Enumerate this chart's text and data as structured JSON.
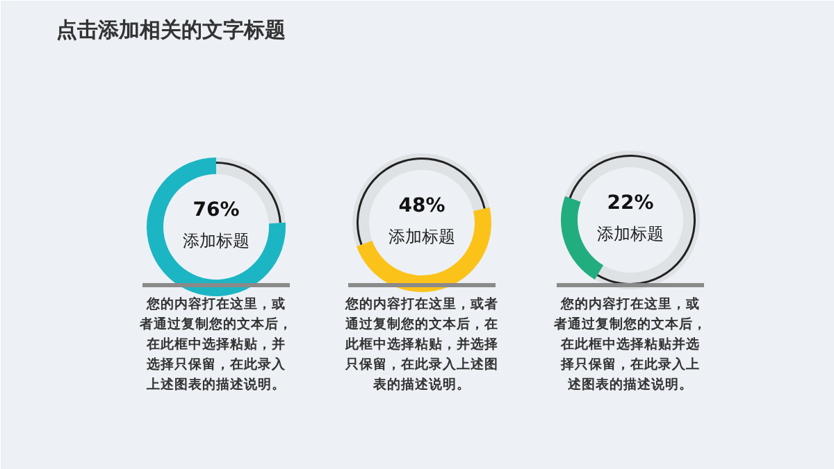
{
  "chart_data": [
    {
      "type": "other",
      "title": "点击添加相关的文字标题"
    },
    {
      "type": "donut",
      "categories": [
        null,
        null
      ],
      "values": [
        76,
        24
      ],
      "colors": [
        "#1cb5c4",
        "#222222"
      ],
      "annotations": [
        "76%",
        "添加标题",
        "您的内容打在这里，或者通过复制您的文本后，在此框中选择粘贴，并选择只保留，在此录入上述图表的描述说明。"
      ]
    },
    {
      "type": "donut",
      "categories": [
        null,
        null
      ],
      "values": [
        48,
        52
      ],
      "colors": [
        "#fbc21a",
        "#222222"
      ],
      "annotations": [
        "48%",
        "添加标题",
        "您的内容打在这里，或者通过复制您的文本后，在此框中选择粘贴，并选择只保留，在此录入上述图表的描述说明。"
      ]
    },
    {
      "type": "donut",
      "categories": [
        null,
        null
      ],
      "values": [
        22,
        78
      ],
      "colors": [
        "#22ad7f",
        "#222222"
      ],
      "annotations": [
        "22%",
        "添加标题",
        "您的内容打在这里，或者通过复制您的文本后，在此框中选择粘贴并选择只保留，在此录入上述图表的描述说明。"
      ]
    }
  ]
}
